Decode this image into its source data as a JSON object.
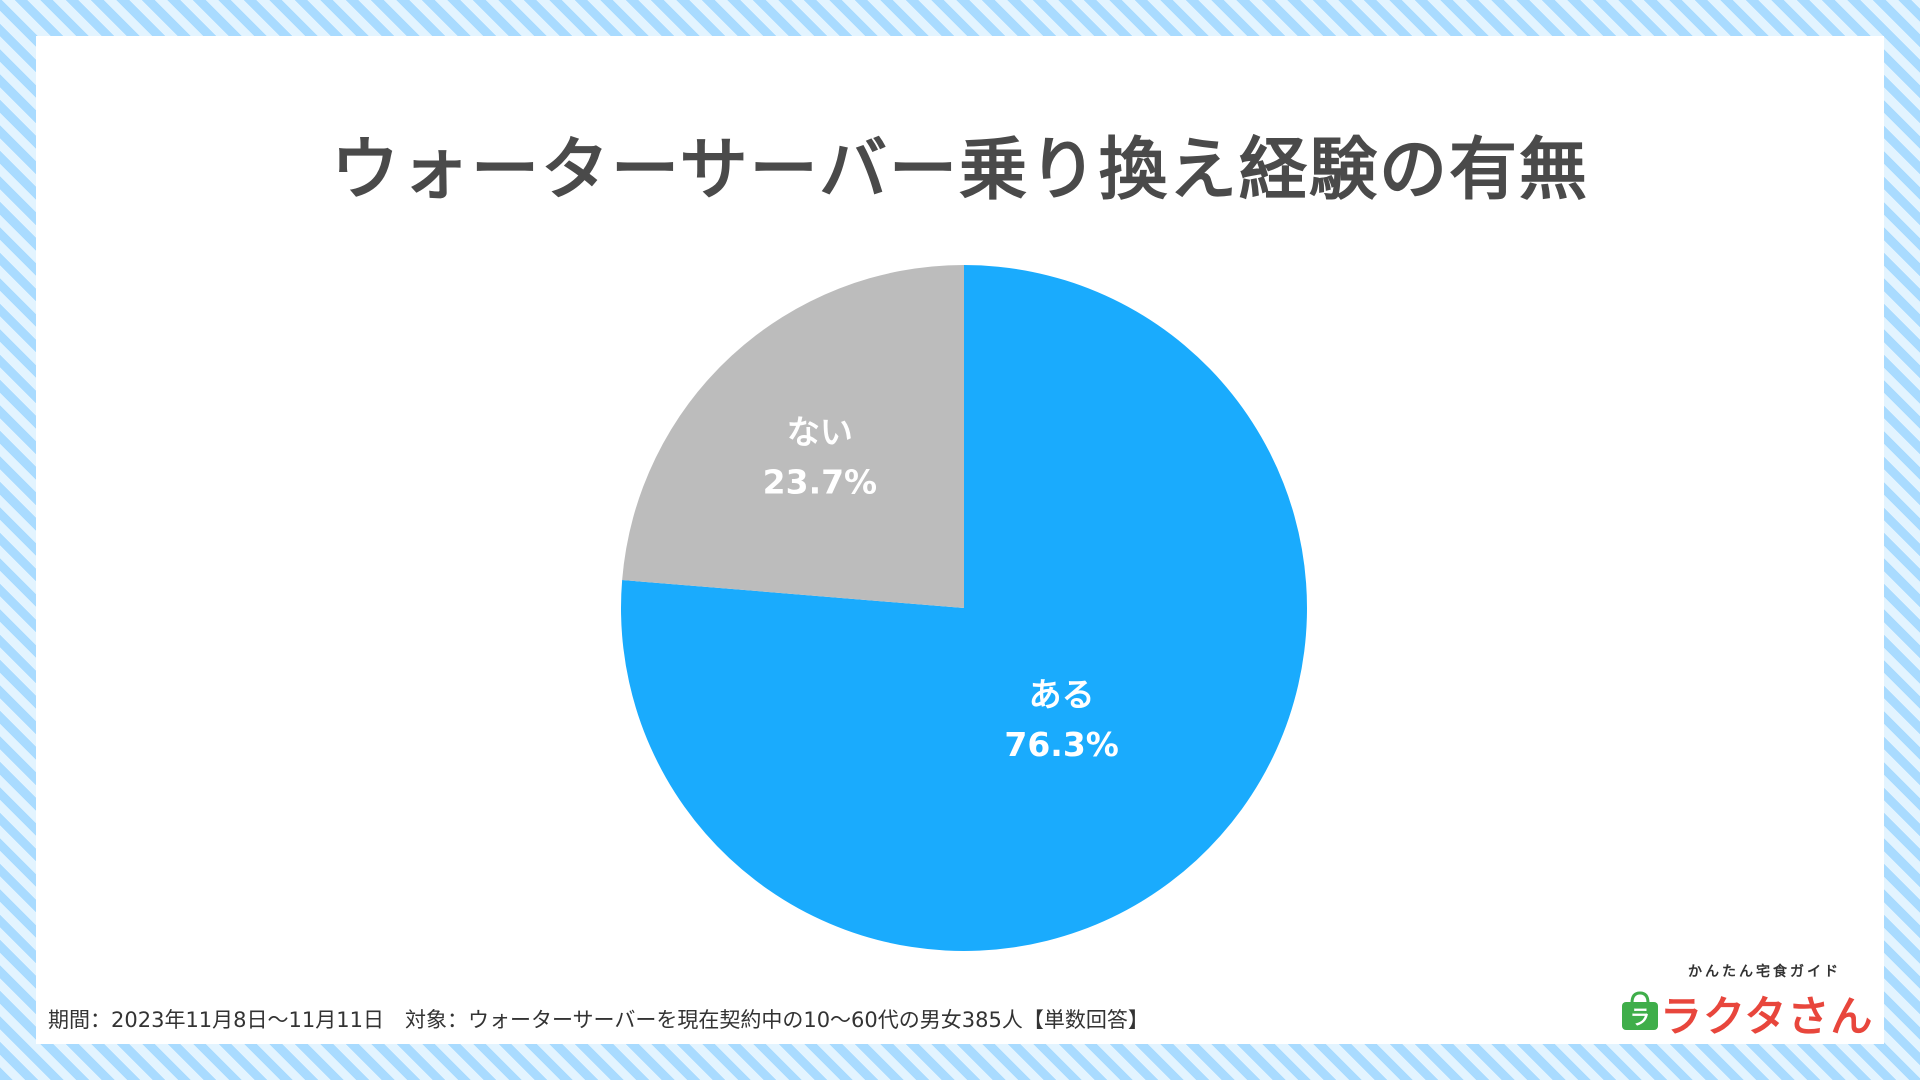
{
  "title": "ウォーターサーバー乗り換え経験の有無",
  "footnote": "期間：2023年11月8日〜11月11日　対象：ウォーターサーバーを現在契約中の10〜60代の男女385人【単数回答】",
  "logo": {
    "tagline": "かんたん宅食ガイド",
    "name": "ラクタさん",
    "icon_text": "ラ"
  },
  "colors": {
    "aru": "#1aabfd",
    "nai": "#bcbcbc",
    "title": "#4a4a4a",
    "logo": "#e8463c",
    "logo_icon": "#3fae4a"
  },
  "chart_data": {
    "type": "pie",
    "start": "12 o'clock",
    "direction": "clockwise",
    "slices": [
      {
        "label": "ある",
        "value": 76.3,
        "display": "76.3%",
        "color": "#1aabfd"
      },
      {
        "label": "ない",
        "value": 23.7,
        "display": "23.7%",
        "color": "#bcbcbc"
      }
    ]
  }
}
